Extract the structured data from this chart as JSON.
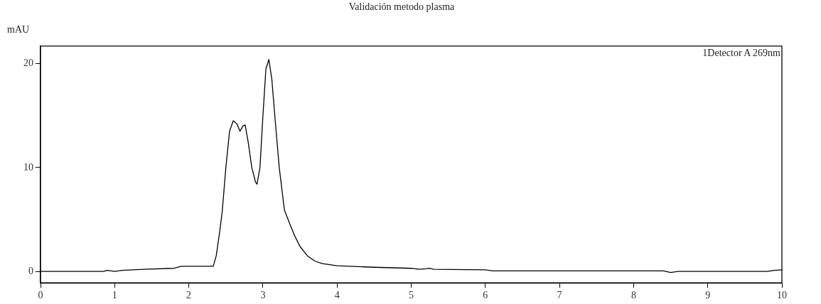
{
  "chart_data": {
    "type": "line",
    "title": "Validación metodo plasma",
    "ylabel": "mAU",
    "annotations": [
      "1Detector A 269nm"
    ],
    "x": [
      0,
      0.5,
      0.85,
      0.9,
      1.0,
      1.1,
      1.4,
      1.8,
      1.9,
      2.0,
      2.2,
      2.33,
      2.37,
      2.42,
      2.45,
      2.5,
      2.55,
      2.6,
      2.65,
      2.69,
      2.73,
      2.76,
      2.8,
      2.85,
      2.9,
      2.92,
      2.96,
      3.0,
      3.04,
      3.08,
      3.12,
      3.16,
      3.22,
      3.29,
      3.36,
      3.43,
      3.5,
      3.6,
      3.7,
      3.8,
      4.0,
      4.5,
      5.0,
      5.1,
      5.2,
      5.25,
      5.3,
      6.0,
      6.1,
      7.0,
      8.4,
      8.5,
      8.6,
      9.0,
      9.8,
      9.9,
      10
    ],
    "series": [
      {
        "color": "#000000",
        "values": [
          0,
          0,
          0,
          0.1,
          0,
          0.1,
          0.2,
          0.3,
          0.5,
          0.5,
          0.5,
          0.5,
          1.5,
          4,
          5.7,
          10,
          13.5,
          14.5,
          14.2,
          13.5,
          14.0,
          14.1,
          12.5,
          10,
          8.6,
          8.4,
          10,
          15,
          19.5,
          20.4,
          18.5,
          15,
          10,
          5.9,
          4.6,
          3.4,
          2.4,
          1.5,
          1.0,
          0.75,
          0.55,
          0.4,
          0.3,
          0.2,
          0.25,
          0.3,
          0.2,
          0.15,
          0.05,
          0.05,
          0.05,
          -0.1,
          0,
          0,
          0,
          0.1,
          0.15
        ]
      }
    ],
    "xlim": [
      0,
      10
    ],
    "xticks": [
      0,
      1,
      2,
      3,
      4,
      5,
      6,
      7,
      8,
      9,
      10
    ],
    "ylim": [
      -1.1,
      21.7
    ],
    "yticks": [
      0,
      10,
      20
    ],
    "grid": false,
    "legend": false,
    "marker": "none",
    "line_style": "solid"
  }
}
